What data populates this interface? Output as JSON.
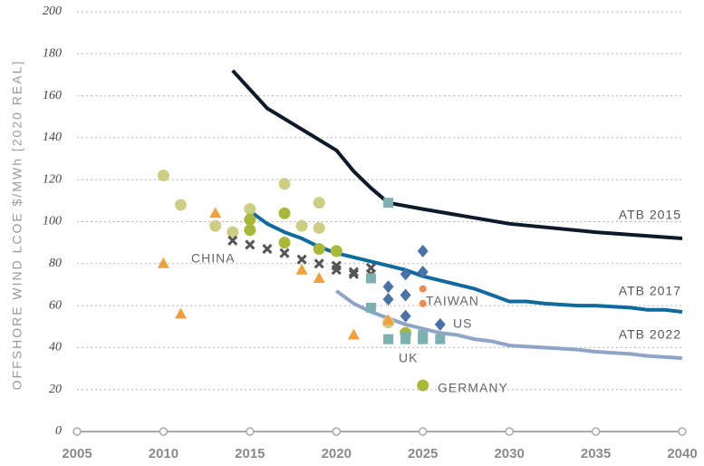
{
  "chart_data": {
    "type": "line",
    "y_label": "OFFSHORE WIND LCOE $/MWh [2020 REAL]",
    "xlim": [
      2005,
      2040
    ],
    "xticks": [
      2005,
      2010,
      2015,
      2020,
      2025,
      2030,
      2035,
      2040
    ],
    "ylim": [
      0,
      200
    ],
    "yticks": [
      0,
      20,
      40,
      60,
      80,
      100,
      120,
      140,
      160,
      180,
      200
    ],
    "grid": true,
    "annotations": [
      "CHINA",
      "TAIWAN",
      "US",
      "UK",
      "GERMANY"
    ],
    "series": [
      {
        "name": "ATB 2015",
        "type": "line",
        "color": "#0c1a2c",
        "x": [
          2014,
          2016,
          2018,
          2020,
          2021,
          2022,
          2023,
          2025,
          2030,
          2035,
          2040
        ],
        "values": [
          172,
          154,
          144,
          134,
          124,
          116,
          109,
          106,
          99,
          95,
          92
        ]
      },
      {
        "name": "ATB 2017",
        "type": "line",
        "color": "#0f6aa0",
        "x": [
          2015,
          2016,
          2017,
          2018,
          2019,
          2020,
          2021,
          2022,
          2023,
          2024,
          2025,
          2026,
          2027,
          2028,
          2029,
          2030,
          2031,
          2032,
          2033,
          2034,
          2035,
          2036,
          2037,
          2038,
          2039,
          2040
        ],
        "values": [
          105,
          99,
          95,
          92,
          88,
          85,
          83,
          81,
          79,
          77,
          74,
          72,
          70,
          68,
          65,
          62,
          62,
          61,
          60.5,
          60,
          60,
          59.5,
          59,
          58,
          58,
          57
        ]
      },
      {
        "name": "ATB 2022",
        "type": "line",
        "color": "#8ea5c6",
        "x": [
          2020,
          2021,
          2022,
          2023,
          2024,
          2025,
          2026,
          2027,
          2028,
          2029,
          2030,
          2031,
          2032,
          2033,
          2034,
          2035,
          2036,
          2037,
          2038,
          2039,
          2040
        ],
        "values": [
          67,
          61,
          57,
          54,
          51,
          49,
          47,
          46,
          44,
          43,
          41,
          40.5,
          40,
          39.5,
          39,
          38,
          37.5,
          37,
          36,
          35.5,
          35
        ]
      },
      {
        "type": "scatter",
        "marker": "circle",
        "color": "#cdce84",
        "x": [
          2010,
          2011,
          2013,
          2014,
          2015,
          2017,
          2018,
          2019,
          2019,
          2020,
          2023
        ],
        "values": [
          122,
          108,
          98,
          95,
          106,
          118,
          98,
          109,
          97,
          86,
          52
        ]
      },
      {
        "type": "scatter",
        "marker": "circle",
        "color": "#aab83a",
        "x": [
          2015,
          2015,
          2017,
          2017,
          2019,
          2020,
          2024,
          2025
        ],
        "values": [
          101,
          96,
          104,
          90,
          87,
          86,
          47,
          22
        ]
      },
      {
        "type": "scatter",
        "marker": "triangle",
        "color": "#f2a03c",
        "x": [
          2010,
          2011,
          2013,
          2018,
          2019,
          2021,
          2023
        ],
        "values": [
          80,
          56,
          104,
          77,
          73,
          46,
          53
        ]
      },
      {
        "type": "scatter",
        "marker": "cross",
        "color": "#555555",
        "x": [
          2014,
          2015,
          2016,
          2017,
          2018,
          2019,
          2020,
          2020,
          2021,
          2021,
          2022,
          2022
        ],
        "values": [
          91,
          89,
          87,
          85,
          82,
          80,
          77,
          79,
          76,
          75,
          78,
          75
        ]
      },
      {
        "type": "scatter",
        "marker": "square",
        "color": "#7db1b1",
        "x": [
          2022,
          2022,
          2023,
          2023,
          2024,
          2024,
          2025,
          2025,
          2026
        ],
        "values": [
          73,
          59,
          44,
          109,
          44,
          45,
          44,
          46,
          44
        ]
      },
      {
        "type": "scatter",
        "marker": "diamond",
        "color": "#4a72a6",
        "x": [
          2023,
          2023,
          2024,
          2024,
          2024,
          2025,
          2025,
          2026
        ],
        "values": [
          69,
          63,
          75,
          65,
          55,
          86,
          76,
          51
        ]
      },
      {
        "type": "scatter",
        "marker": "dot",
        "color": "#ef8a4c",
        "x": [
          2025,
          2025
        ],
        "values": [
          68,
          61
        ]
      }
    ]
  }
}
